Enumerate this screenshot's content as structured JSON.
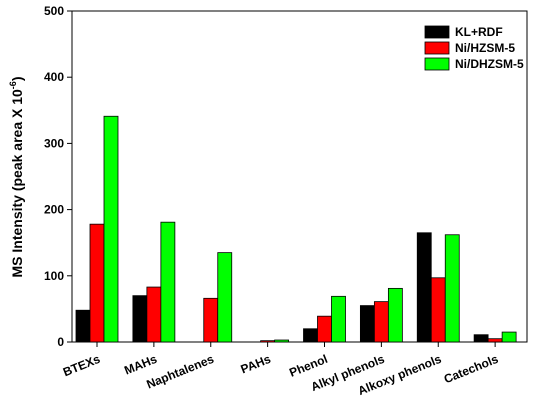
{
  "chart_data": {
    "type": "bar",
    "categories": [
      "BTEXs",
      "MAHs",
      "Naphtalenes",
      "PAHs",
      "Phenol",
      "Alkyl phenols",
      "Alkoxy phenols",
      "Catechols"
    ],
    "series": [
      {
        "name": "KL+RDF",
        "color": "#000000",
        "values": [
          48,
          70,
          0,
          0,
          20,
          55,
          165,
          11
        ]
      },
      {
        "name": "Ni/HZSM-5",
        "color": "#ff0000",
        "values": [
          178,
          83,
          66,
          2,
          39,
          61,
          97,
          5
        ]
      },
      {
        "name": "Ni/DHZSM-5",
        "color": "#00ff00",
        "values": [
          341,
          181,
          135,
          3,
          69,
          81,
          162,
          15
        ]
      }
    ],
    "ylabel": "MS Intensity (peak area X 10",
    "ylabel_sup": "-6",
    "ylabel_close": ")",
    "xlabel": "",
    "ylim": [
      0,
      500
    ],
    "yticks": [
      "0",
      "100",
      "200",
      "300",
      "400",
      "500"
    ],
    "legend_position": "top-right",
    "grid": false
  }
}
